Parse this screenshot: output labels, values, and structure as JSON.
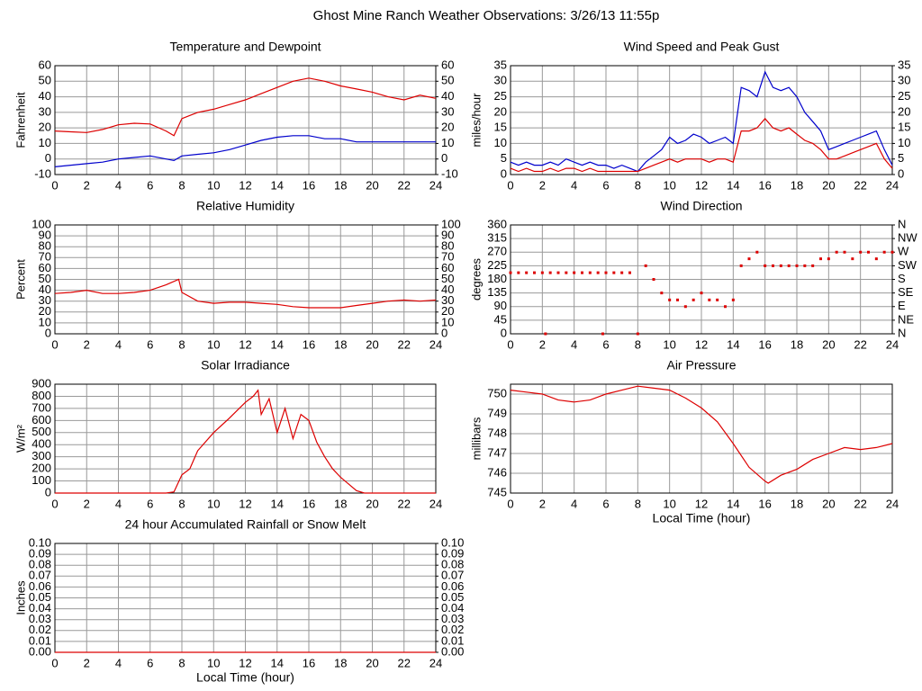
{
  "title": "Ghost Mine Ranch Weather Observations: 3/26/13 11:55p",
  "chart_data": [
    {
      "type": "line",
      "title": "Temperature and Dewpoint",
      "ylabel": "Fahrenheit",
      "x": [
        0,
        1,
        2,
        3,
        4,
        5,
        6,
        7,
        7.5,
        8,
        9,
        10,
        11,
        12,
        13,
        14,
        15,
        16,
        17,
        18,
        19,
        20,
        21,
        22,
        23,
        24
      ],
      "series": [
        {
          "name": "Temperature",
          "color": "#dd0000",
          "values": [
            18,
            17.5,
            17,
            19,
            22,
            23,
            22.5,
            18,
            15,
            26,
            30,
            32,
            35,
            38,
            42,
            46,
            50,
            52,
            50,
            47,
            45,
            43,
            40,
            38,
            41,
            39
          ]
        },
        {
          "name": "Dewpoint",
          "color": "#0000cc",
          "values": [
            -5,
            -4,
            -3,
            -2,
            0,
            1,
            2,
            0,
            -1,
            2,
            3,
            4,
            6,
            9,
            12,
            14,
            15,
            15,
            13,
            13,
            11,
            11,
            11,
            11,
            11,
            11
          ]
        }
      ],
      "xlim": [
        0,
        24
      ],
      "xticks": [
        0,
        2,
        4,
        6,
        8,
        10,
        12,
        14,
        16,
        18,
        20,
        22,
        24
      ],
      "ylim": [
        -10,
        60
      ],
      "yticks": [
        60,
        50,
        40,
        30,
        20,
        10,
        0,
        -10
      ],
      "y2lim": [
        -10,
        60
      ],
      "y2ticks": [
        60,
        50,
        40,
        30,
        20,
        10,
        0,
        -10
      ],
      "grid": true
    },
    {
      "type": "line",
      "title": "Wind Speed and Peak Gust",
      "ylabel": "miles/hour",
      "x": [
        0,
        0.5,
        1,
        1.5,
        2,
        2.5,
        3,
        3.5,
        4,
        4.5,
        5,
        5.5,
        6,
        6.5,
        7,
        7.5,
        8,
        8.5,
        9,
        9.5,
        10,
        10.5,
        11,
        11.5,
        12,
        12.5,
        13,
        13.5,
        14,
        14.5,
        15,
        15.5,
        16,
        16.5,
        17,
        17.5,
        18,
        18.5,
        19,
        19.5,
        20,
        20.5,
        21,
        21.5,
        22,
        22.5,
        23,
        23.5,
        24
      ],
      "series": [
        {
          "name": "Peak Gust",
          "color": "#0000cc",
          "values": [
            4,
            3,
            4,
            3,
            3,
            4,
            3,
            5,
            4,
            3,
            4,
            3,
            3,
            2,
            3,
            2,
            1,
            4,
            6,
            8,
            12,
            10,
            11,
            13,
            12,
            10,
            11,
            12,
            10,
            28,
            27,
            25,
            33,
            28,
            27,
            28,
            25,
            20,
            17,
            14,
            8,
            9,
            10,
            11,
            12,
            13,
            14,
            8,
            3
          ]
        },
        {
          "name": "Wind Speed",
          "color": "#dd0000",
          "values": [
            2,
            1,
            2,
            1,
            1,
            2,
            1,
            2,
            2,
            1,
            2,
            1,
            1,
            1,
            1,
            1,
            1,
            2,
            3,
            4,
            5,
            4,
            5,
            5,
            5,
            4,
            5,
            5,
            4,
            14,
            14,
            15,
            18,
            15,
            14,
            15,
            13,
            11,
            10,
            8,
            5,
            5,
            6,
            7,
            8,
            9,
            10,
            5,
            2
          ]
        }
      ],
      "xlim": [
        0,
        24
      ],
      "xticks": [
        0,
        2,
        4,
        6,
        8,
        10,
        12,
        14,
        16,
        18,
        20,
        22,
        24
      ],
      "ylim": [
        0,
        35
      ],
      "yticks": [
        35,
        30,
        25,
        20,
        15,
        10,
        5,
        0
      ],
      "y2lim": [
        0,
        35
      ],
      "y2ticks": [
        35,
        30,
        25,
        20,
        15,
        10,
        5,
        0
      ],
      "grid": true
    },
    {
      "type": "line",
      "title": "Relative Humidity",
      "ylabel": "Percent",
      "x": [
        0,
        1,
        2,
        3,
        4,
        5,
        6,
        7,
        7.8,
        8,
        9,
        10,
        11,
        12,
        13,
        14,
        15,
        16,
        17,
        18,
        19,
        20,
        21,
        22,
        23,
        24
      ],
      "series": [
        {
          "name": "Relative Humidity",
          "color": "#dd0000",
          "values": [
            37,
            38,
            40,
            37,
            37,
            38,
            40,
            45,
            50,
            38,
            30,
            28,
            29,
            29,
            28,
            27,
            25,
            24,
            24,
            24,
            26,
            28,
            30,
            31,
            30,
            31
          ]
        }
      ],
      "xlim": [
        0,
        24
      ],
      "xticks": [
        0,
        2,
        4,
        6,
        8,
        10,
        12,
        14,
        16,
        18,
        20,
        22,
        24
      ],
      "ylim": [
        0,
        100
      ],
      "yticks": [
        100,
        90,
        80,
        70,
        60,
        50,
        40,
        30,
        20,
        10,
        0
      ],
      "y2lim": [
        0,
        100
      ],
      "y2ticks": [
        100,
        90,
        80,
        70,
        60,
        50,
        40,
        30,
        20,
        10,
        0
      ],
      "grid": true
    },
    {
      "type": "scatter",
      "title": "Wind Direction",
      "ylabel": "degrees",
      "x": [
        0,
        0.5,
        1,
        1.5,
        2,
        2.2,
        2.5,
        3,
        3.5,
        4,
        4.5,
        5,
        5.5,
        5.8,
        6,
        6.5,
        7,
        7.5,
        8,
        8.5,
        9,
        9.5,
        10,
        10.5,
        11,
        11.5,
        12,
        12.5,
        13,
        13.5,
        14,
        14.5,
        15,
        15.5,
        16,
        16.5,
        17,
        17.5,
        18,
        18.5,
        19,
        19.5,
        20,
        20.5,
        21,
        21.5,
        22,
        22.5,
        23,
        23.5,
        24
      ],
      "series": [
        {
          "name": "Wind Direction",
          "color": "#dd0000",
          "values": [
            202,
            202,
            202,
            202,
            202,
            0,
            202,
            202,
            202,
            202,
            202,
            202,
            202,
            0,
            202,
            202,
            202,
            202,
            0,
            225,
            180,
            135,
            112,
            112,
            90,
            112,
            135,
            112,
            112,
            90,
            112,
            225,
            248,
            270,
            225,
            225,
            225,
            225,
            225,
            225,
            225,
            248,
            248,
            270,
            270,
            248,
            270,
            270,
            248,
            270,
            270
          ]
        }
      ],
      "xlim": [
        0,
        24
      ],
      "xticks": [
        0,
        2,
        4,
        6,
        8,
        10,
        12,
        14,
        16,
        18,
        20,
        22,
        24
      ],
      "ylim": [
        0,
        360
      ],
      "yticks": [
        360,
        315,
        270,
        225,
        180,
        135,
        90,
        45,
        0
      ],
      "y2lim": [
        0,
        360
      ],
      "y2ticks": [
        {
          "value": 360,
          "label": "N"
        },
        {
          "value": 315,
          "label": "NW"
        },
        {
          "value": 270,
          "label": "W"
        },
        {
          "value": 225,
          "label": "SW"
        },
        {
          "value": 180,
          "label": "S"
        },
        {
          "value": 135,
          "label": "SE"
        },
        {
          "value": 90,
          "label": "E"
        },
        {
          "value": 45,
          "label": "NE"
        },
        {
          "value": 0,
          "label": "N"
        }
      ],
      "grid": true
    },
    {
      "type": "line",
      "title": "Solar Irradiance",
      "ylabel": "W/m²",
      "x": [
        0,
        7,
        7.5,
        8,
        8.5,
        9,
        10,
        11,
        12,
        12.5,
        12.8,
        13,
        13.5,
        14,
        14.5,
        15,
        15.5,
        16,
        16.5,
        17,
        17.5,
        18,
        19,
        19.5,
        24
      ],
      "series": [
        {
          "name": "Solar Irradiance",
          "color": "#dd0000",
          "values": [
            0,
            0,
            10,
            150,
            200,
            350,
            500,
            620,
            750,
            800,
            850,
            650,
            780,
            500,
            700,
            450,
            650,
            600,
            420,
            300,
            200,
            130,
            20,
            0,
            0
          ]
        }
      ],
      "xlim": [
        0,
        24
      ],
      "xticks": [
        0,
        2,
        4,
        6,
        8,
        10,
        12,
        14,
        16,
        18,
        20,
        22,
        24
      ],
      "ylim": [
        0,
        900
      ],
      "yticks": [
        900,
        800,
        700,
        600,
        500,
        400,
        300,
        200,
        100,
        0
      ],
      "grid": true
    },
    {
      "type": "line",
      "title": "Air Pressure",
      "ylabel": "millibars",
      "xlabel": "Local Time (hour)",
      "x": [
        0,
        1,
        2,
        3,
        4,
        5,
        6,
        7,
        8,
        9,
        10,
        11,
        12,
        13,
        14,
        15,
        16,
        16.2,
        17,
        18,
        19,
        20,
        21,
        22,
        23,
        24
      ],
      "series": [
        {
          "name": "Air Pressure",
          "color": "#dd0000",
          "values": [
            750.2,
            750.1,
            750,
            749.7,
            749.6,
            749.7,
            750,
            750.2,
            750.4,
            750.3,
            750.2,
            749.8,
            749.3,
            748.6,
            747.5,
            746.3,
            745.6,
            745.5,
            745.9,
            746.2,
            746.7,
            747,
            747.3,
            747.2,
            747.3,
            747.5
          ]
        }
      ],
      "xlim": [
        0,
        24
      ],
      "xticks": [
        0,
        2,
        4,
        6,
        8,
        10,
        12,
        14,
        16,
        18,
        20,
        22,
        24
      ],
      "ylim": [
        745,
        750.5
      ],
      "yticks": [
        750,
        749,
        748,
        747,
        746,
        745
      ],
      "grid": true
    },
    {
      "type": "line",
      "title": "24 hour Accumulated Rainfall or Snow Melt",
      "ylabel": "Inches",
      "xlabel": "Local Time (hour)",
      "x": [
        0,
        24
      ],
      "series": [
        {
          "name": "Rainfall",
          "color": "#dd0000",
          "values": [
            0,
            0
          ]
        }
      ],
      "xlim": [
        0,
        24
      ],
      "xticks": [
        0,
        2,
        4,
        6,
        8,
        10,
        12,
        14,
        16,
        18,
        20,
        22,
        24
      ],
      "ylim": [
        0,
        0.1
      ],
      "yticks": [
        {
          "value": 0.1,
          "label": "0.10"
        },
        {
          "value": 0.09,
          "label": "0.09"
        },
        {
          "value": 0.08,
          "label": "0.08"
        },
        {
          "value": 0.07,
          "label": "0.07"
        },
        {
          "value": 0.06,
          "label": "0.06"
        },
        {
          "value": 0.05,
          "label": "0.05"
        },
        {
          "value": 0.04,
          "label": "0.04"
        },
        {
          "value": 0.03,
          "label": "0.03"
        },
        {
          "value": 0.02,
          "label": "0.02"
        },
        {
          "value": 0.01,
          "label": "0.01"
        },
        {
          "value": 0,
          "label": "0.00"
        }
      ],
      "y2lim": [
        0,
        0.1
      ],
      "y2ticks": [
        {
          "value": 0.1,
          "label": "0.10"
        },
        {
          "value": 0.09,
          "label": "0.09"
        },
        {
          "value": 0.08,
          "label": "0.08"
        },
        {
          "value": 0.07,
          "label": "0.07"
        },
        {
          "value": 0.06,
          "label": "0.06"
        },
        {
          "value": 0.05,
          "label": "0.05"
        },
        {
          "value": 0.04,
          "label": "0.04"
        },
        {
          "value": 0.03,
          "label": "0.03"
        },
        {
          "value": 0.02,
          "label": "0.02"
        },
        {
          "value": 0.01,
          "label": "0.01"
        },
        {
          "value": 0,
          "label": "0.00"
        }
      ],
      "grid": true
    }
  ]
}
